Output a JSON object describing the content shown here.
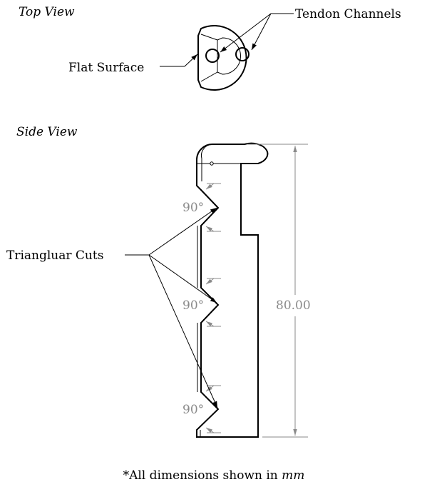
{
  "views": {
    "top_title": "Top View",
    "side_title": "Side View"
  },
  "labels": {
    "tendon_channels": "Tendon Channels",
    "flat_surface": "Flat Surface",
    "triangular_cuts": "Triangluar Cuts"
  },
  "dimensions": {
    "angle_1": "90°",
    "angle_2": "90°",
    "angle_3": "90°",
    "height": "80.00"
  },
  "footnote": {
    "prefix": "*All dimensions shown in ",
    "unit": "mm"
  },
  "colors": {
    "line": "#000000",
    "dimension": "#8a8a8a",
    "background": "#ffffff"
  }
}
